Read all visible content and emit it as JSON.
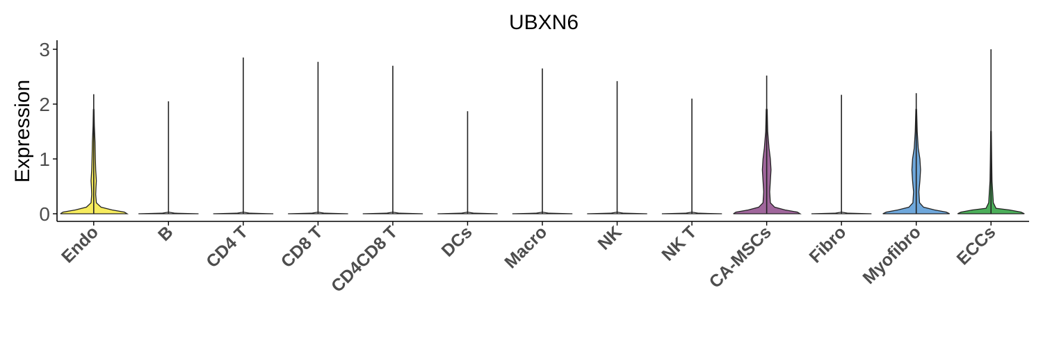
{
  "chart_data": {
    "type": "violin",
    "title": "UBXN6",
    "ylabel": "Expression",
    "xlabel": "",
    "ylim": [
      -0.15,
      3.15
    ],
    "yticks": [
      0,
      1,
      2,
      3
    ],
    "ytick_labels": [
      "0",
      "1",
      "2",
      "3"
    ],
    "grid": false,
    "legend": "none",
    "categories": [
      "Endo",
      "B",
      "CD4 T",
      "CD8 T",
      "CD4CD8 T",
      "DCs",
      "Macro",
      "NK",
      "NK T",
      "CA-MSCs",
      "Fibro",
      "Myofibro",
      "ECCs"
    ],
    "max_values": [
      2.18,
      2.05,
      2.85,
      2.77,
      2.7,
      1.87,
      2.65,
      2.42,
      2.1,
      2.52,
      2.17,
      2.2,
      3.0
    ],
    "fill_colors": [
      "#f7ec5e",
      "#f0f0f0",
      "#f0f0f0",
      "#f0f0f0",
      "#f0f0f0",
      "#f0f0f0",
      "#f0f0f0",
      "#f0f0f0",
      "#f0f0f0",
      "#a0669c",
      "#f0f0f0",
      "#6fa8dc",
      "#4caf5a"
    ],
    "density_shapes": [
      [
        [
          0,
          1.0
        ],
        [
          0.03,
          0.92
        ],
        [
          0.07,
          0.55
        ],
        [
          0.12,
          0.22
        ],
        [
          0.2,
          0.08
        ],
        [
          0.35,
          0.06
        ],
        [
          0.5,
          0.07
        ],
        [
          0.6,
          0.08
        ],
        [
          0.8,
          0.06
        ],
        [
          1.0,
          0.05
        ],
        [
          1.3,
          0.04
        ],
        [
          1.6,
          0.02
        ],
        [
          1.9,
          0.01
        ]
      ],
      [
        [
          0,
          0.9
        ],
        [
          0.01,
          0.2
        ]
      ],
      [
        [
          0,
          0.9
        ],
        [
          0.01,
          0.2
        ]
      ],
      [
        [
          0,
          0.9
        ],
        [
          0.01,
          0.2
        ]
      ],
      [
        [
          0,
          0.9
        ],
        [
          0.01,
          0.2
        ]
      ],
      [
        [
          0,
          0.9
        ],
        [
          0.01,
          0.2
        ]
      ],
      [
        [
          0,
          0.9
        ],
        [
          0.01,
          0.2
        ]
      ],
      [
        [
          0,
          0.9
        ],
        [
          0.01,
          0.2
        ]
      ],
      [
        [
          0,
          0.9
        ],
        [
          0.01,
          0.2
        ]
      ],
      [
        [
          0,
          1.0
        ],
        [
          0.03,
          0.92
        ],
        [
          0.07,
          0.55
        ],
        [
          0.12,
          0.24
        ],
        [
          0.2,
          0.11
        ],
        [
          0.4,
          0.09
        ],
        [
          0.6,
          0.11
        ],
        [
          0.8,
          0.13
        ],
        [
          1.0,
          0.11
        ],
        [
          1.2,
          0.07
        ],
        [
          1.5,
          0.03
        ],
        [
          1.9,
          0.015
        ]
      ],
      [
        [
          0,
          0.9
        ],
        [
          0.01,
          0.2
        ]
      ],
      [
        [
          0,
          1.0
        ],
        [
          0.03,
          0.9
        ],
        [
          0.07,
          0.55
        ],
        [
          0.12,
          0.22
        ],
        [
          0.2,
          0.1
        ],
        [
          0.4,
          0.08
        ],
        [
          0.6,
          0.11
        ],
        [
          0.8,
          0.13
        ],
        [
          1.0,
          0.11
        ],
        [
          1.2,
          0.06
        ],
        [
          1.5,
          0.03
        ],
        [
          1.9,
          0.012
        ]
      ],
      [
        [
          0,
          1.0
        ],
        [
          0.03,
          0.9
        ],
        [
          0.07,
          0.55
        ],
        [
          0.1,
          0.15
        ],
        [
          0.2,
          0.07
        ],
        [
          0.4,
          0.05
        ],
        [
          0.6,
          0.03
        ],
        [
          1.0,
          0.02
        ],
        [
          1.5,
          0.01
        ]
      ]
    ]
  }
}
